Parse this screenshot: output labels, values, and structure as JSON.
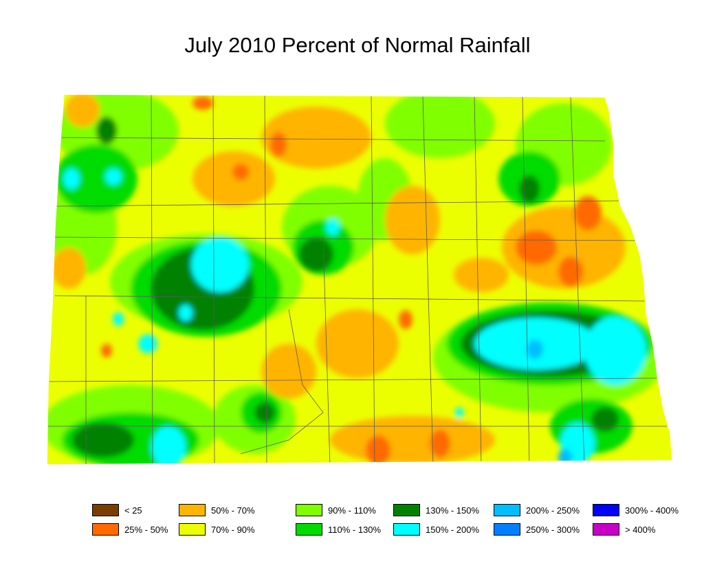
{
  "title": "July 2010 Percent of Normal Rainfall",
  "map": {
    "region": "North Dakota",
    "colors": {
      "background_fill": "#ecff00",
      "county_line": "#5a5a5a",
      "outline": "#ffffff"
    }
  },
  "legend": [
    {
      "label": "< 25",
      "color": "#7a3f00"
    },
    {
      "label": "25% - 50%",
      "color": "#ff6a00"
    },
    {
      "label": "50% - 70%",
      "color": "#ffb400"
    },
    {
      "label": "70% - 90%",
      "color": "#ecff00"
    },
    {
      "label": "90% - 110%",
      "color": "#80ff00"
    },
    {
      "label": "110% - 130%",
      "color": "#00dc00"
    },
    {
      "label": "130% - 150%",
      "color": "#008200"
    },
    {
      "label": "150% - 200%",
      "color": "#00ffff"
    },
    {
      "label": "200% - 250%",
      "color": "#00beff"
    },
    {
      "label": "250% - 300%",
      "color": "#0080ff"
    },
    {
      "label": "300% - 400%",
      "color": "#0000ff"
    },
    {
      "label": "> 400%",
      "color": "#c800c8"
    }
  ]
}
